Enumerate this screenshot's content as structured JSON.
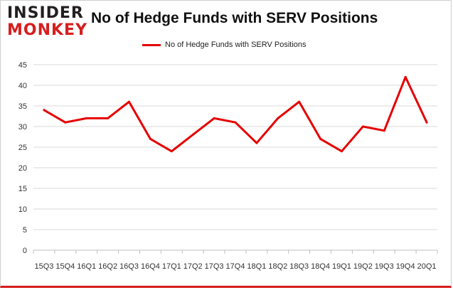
{
  "header": {
    "logo_top": "INSIDER",
    "logo_bottom": "MONKEY",
    "title": "No of Hedge Funds with SERV Positions"
  },
  "colors": {
    "line": "#e60000",
    "brand_red": "#d61e1e",
    "grid": "#d9d9d9"
  },
  "chart_data": {
    "type": "line",
    "title": "No of Hedge Funds with SERV Positions",
    "xlabel": "",
    "ylabel": "",
    "ylim": [
      0,
      45
    ],
    "yticks": [
      0,
      5,
      10,
      15,
      20,
      25,
      30,
      35,
      40,
      45
    ],
    "grid": true,
    "legend_position": "top-center",
    "categories": [
      "15Q3",
      "15Q4",
      "16Q1",
      "16Q2",
      "16Q3",
      "16Q4",
      "17Q1",
      "17Q2",
      "17Q3",
      "17Q4",
      "18Q1",
      "18Q2",
      "18Q3",
      "18Q4",
      "19Q1",
      "19Q2",
      "19Q3",
      "19Q4",
      "20Q1"
    ],
    "series": [
      {
        "name": "No of Hedge Funds with SERV Positions",
        "values": [
          34,
          31,
          32,
          32,
          36,
          27,
          24,
          28,
          32,
          31,
          26,
          32,
          36,
          27,
          24,
          30,
          29,
          42,
          31
        ]
      }
    ]
  }
}
